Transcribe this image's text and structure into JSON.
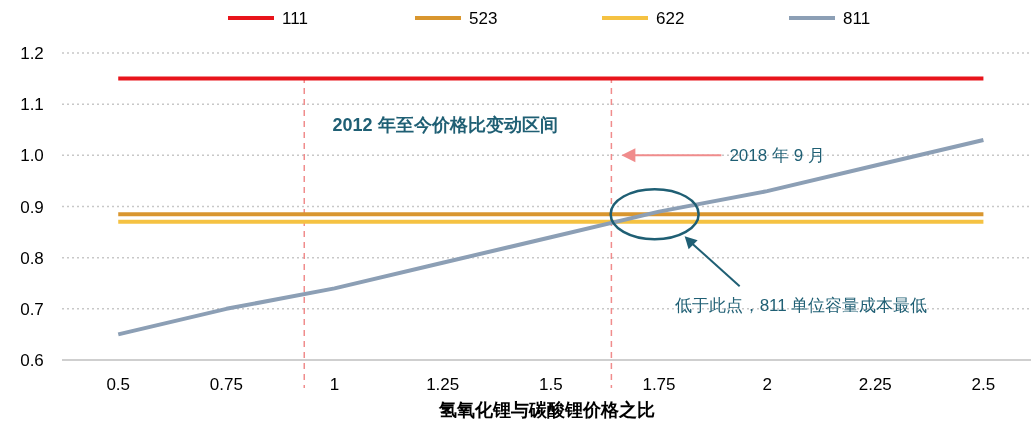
{
  "chart_data": {
    "type": "line",
    "xlabel": "氢氧化锂与碳酸锂价格之比",
    "x": [
      0.5,
      0.75,
      1,
      1.25,
      1.5,
      1.75,
      2,
      2.25,
      2.5
    ],
    "series": [
      {
        "name": "111",
        "color": "#e8141b",
        "values": [
          1.15,
          1.15,
          1.15,
          1.15,
          1.15,
          1.15,
          1.15,
          1.15,
          1.15
        ]
      },
      {
        "name": "523",
        "color": "#d9962e",
        "values": [
          0.885,
          0.885,
          0.885,
          0.885,
          0.885,
          0.885,
          0.885,
          0.885,
          0.885
        ]
      },
      {
        "name": "622",
        "color": "#f5c242",
        "values": [
          0.87,
          0.87,
          0.87,
          0.87,
          0.87,
          0.87,
          0.87,
          0.87,
          0.87
        ]
      },
      {
        "name": "811",
        "color": "#8c9fb5",
        "values": [
          0.65,
          0.7,
          0.74,
          0.79,
          0.84,
          0.89,
          0.93,
          0.98,
          1.03
        ]
      }
    ],
    "xlim": [
      0.37,
      2.61
    ],
    "ylim": [
      0.6,
      1.2
    ],
    "xticks": [
      0.5,
      0.75,
      1,
      1.25,
      1.5,
      1.75,
      2,
      2.25,
      2.5
    ],
    "yticks": [
      0.6,
      0.7,
      0.8,
      0.9,
      {
        "value": 1,
        "label": "1.0"
      },
      1.1,
      1.2
    ],
    "grid": "y",
    "legend": "top",
    "marker": "none",
    "line_style": "solid",
    "ref_lines": [
      {
        "axis": "x",
        "value": 0.93,
        "color": "#f08c8c",
        "line_style": "dashed"
      },
      {
        "axis": "x",
        "value": 1.64,
        "color": "#f08c8c",
        "line_style": "dashed"
      }
    ],
    "annotations": [
      "2012 年至今价格比变动区间",
      "2018 年 9 月",
      "低于此点，811 单位容量成本最低"
    ]
  }
}
